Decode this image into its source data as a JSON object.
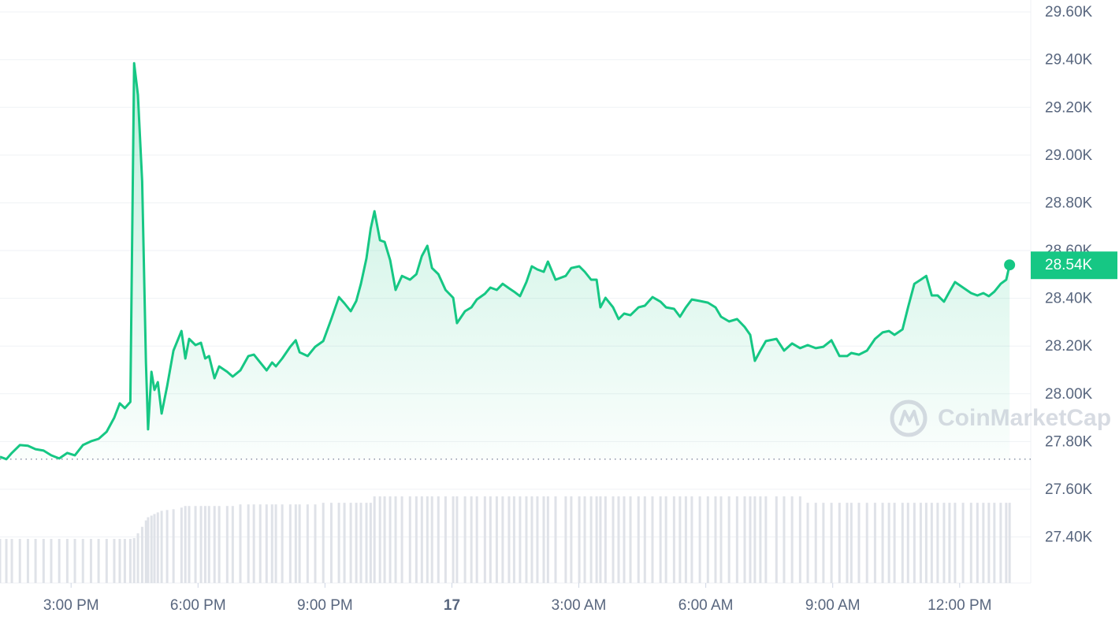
{
  "chart_data": {
    "type": "line",
    "x": [
      -1.68,
      -1.53,
      -1.4,
      -1.21,
      -1.02,
      -0.84,
      -0.65,
      -0.47,
      -0.28,
      -0.09,
      0.09,
      0.28,
      0.47,
      0.65,
      0.84,
      1.02,
      1.15,
      1.27,
      1.4,
      1.49,
      1.58,
      1.68,
      1.77,
      1.82,
      1.9,
      1.97,
      2.05,
      2.14,
      2.27,
      2.42,
      2.61,
      2.7,
      2.79,
      2.94,
      3.07,
      3.17,
      3.26,
      3.39,
      3.5,
      3.69,
      3.82,
      4.0,
      4.19,
      4.32,
      4.47,
      4.62,
      4.75,
      4.84,
      4.99,
      5.18,
      5.31,
      5.4,
      5.59,
      5.77,
      5.96,
      6.15,
      6.33,
      6.46,
      6.61,
      6.74,
      6.85,
      6.98,
      7.08,
      7.17,
      7.3,
      7.41,
      7.54,
      7.67,
      7.82,
      8.01,
      8.16,
      8.29,
      8.42,
      8.53,
      8.68,
      8.85,
      9.03,
      9.12,
      9.31,
      9.46,
      9.59,
      9.78,
      9.91,
      10.06,
      10.2,
      10.35,
      10.47,
      10.61,
      10.76,
      10.89,
      11.02,
      11.17,
      11.27,
      11.45,
      11.69,
      11.82,
      12.01,
      12.14,
      12.29,
      12.42,
      12.51,
      12.63,
      12.81,
      12.94,
      13.07,
      13.22,
      13.41,
      13.56,
      13.74,
      13.93,
      14.06,
      14.25,
      14.39,
      14.53,
      14.67,
      14.86,
      15.05,
      15.23,
      15.36,
      15.55,
      15.74,
      15.92,
      16.05,
      16.16,
      16.29,
      16.42,
      16.67,
      16.85,
      17.04,
      17.23,
      17.41,
      17.6,
      17.78,
      17.97,
      18.16,
      18.34,
      18.44,
      18.62,
      18.81,
      19.0,
      19.18,
      19.33,
      19.46,
      19.65,
      19.78,
      19.93,
      20.08,
      20.21,
      20.34,
      20.48,
      20.63,
      20.76,
      20.89,
      21.08,
      21.27,
      21.42,
      21.56,
      21.69,
      21.82,
      21.97,
      22.1,
      22.18
    ],
    "series": [
      {
        "color": "#16c784",
        "values": [
          27736,
          27726,
          27752,
          27785,
          27782,
          27768,
          27762,
          27742,
          27729,
          27752,
          27742,
          27785,
          27801,
          27811,
          27841,
          27900,
          27960,
          27940,
          27966,
          29385,
          29253,
          28890,
          28131,
          27851,
          28092,
          28016,
          28049,
          27917,
          28032,
          28181,
          28263,
          28148,
          28230,
          28204,
          28214,
          28148,
          28158,
          28065,
          28115,
          28092,
          28072,
          28098,
          28158,
          28164,
          28131,
          28098,
          28131,
          28115,
          28148,
          28197,
          28224,
          28174,
          28158,
          28197,
          28221,
          28313,
          28405,
          28379,
          28346,
          28389,
          28461,
          28567,
          28692,
          28765,
          28643,
          28636,
          28560,
          28435,
          28494,
          28478,
          28501,
          28577,
          28620,
          28527,
          28501,
          28435,
          28402,
          28296,
          28346,
          28362,
          28395,
          28419,
          28445,
          28435,
          28461,
          28442,
          28428,
          28409,
          28468,
          28534,
          28521,
          28511,
          28554,
          28478,
          28494,
          28527,
          28534,
          28511,
          28478,
          28478,
          28362,
          28402,
          28362,
          28313,
          28336,
          28329,
          28362,
          28369,
          28405,
          28386,
          28362,
          28356,
          28323,
          28362,
          28395,
          28389,
          28382,
          28362,
          28323,
          28303,
          28313,
          28280,
          28247,
          28138,
          28181,
          28221,
          28230,
          28181,
          28211,
          28191,
          28204,
          28191,
          28197,
          28224,
          28158,
          28158,
          28171,
          28164,
          28181,
          28230,
          28257,
          28263,
          28247,
          28270,
          28362,
          28461,
          28478,
          28494,
          28412,
          28412,
          28386,
          28428,
          28468,
          28445,
          28422,
          28412,
          28422,
          28409,
          28428,
          28461,
          28478,
          28540
        ]
      }
    ],
    "volume": {
      "color": "#dfe2e8",
      "values": [
        55,
        55,
        55,
        55,
        55,
        55,
        55,
        55,
        55,
        55,
        55,
        55,
        55,
        55,
        55,
        55,
        55,
        55,
        55,
        56,
        62,
        70,
        78,
        82,
        84,
        86,
        88,
        90,
        91,
        92,
        94,
        96,
        96,
        96,
        96,
        96,
        96,
        96,
        96,
        96,
        96,
        98,
        98,
        98,
        98,
        98,
        98,
        98,
        98,
        98,
        98,
        98,
        98,
        98,
        100,
        100,
        100,
        100,
        100,
        100,
        100,
        100,
        100,
        108,
        108,
        108,
        108,
        108,
        108,
        108,
        108,
        108,
        108,
        108,
        108,
        108,
        108,
        108,
        108,
        108,
        108,
        108,
        108,
        108,
        108,
        108,
        108,
        108,
        108,
        108,
        108,
        108,
        108,
        108,
        108,
        108,
        108,
        108,
        108,
        108,
        108,
        108,
        108,
        108,
        108,
        108,
        108,
        108,
        108,
        108,
        108,
        108,
        108,
        108,
        108,
        108,
        108,
        108,
        108,
        108,
        108,
        108,
        108,
        108,
        108,
        108,
        108,
        108,
        108,
        108,
        100,
        100,
        100,
        100,
        100,
        100,
        100,
        100,
        100,
        100,
        100,
        100,
        100,
        100,
        100,
        100,
        100,
        100,
        100,
        100,
        100,
        100,
        100,
        100,
        100,
        100,
        100,
        100,
        100,
        100,
        100,
        100
      ]
    },
    "reference_value": 27726,
    "current_label": {
      "value": 28540,
      "label": "28.54K"
    },
    "xlim": [
      -1.68,
      22.68
    ],
    "ylim": [
      27207,
      29650
    ],
    "xticks": [
      {
        "value": 0,
        "label": "3:00 PM"
      },
      {
        "value": 3,
        "label": "6:00 PM"
      },
      {
        "value": 6,
        "label": "9:00 PM"
      },
      {
        "value": 9,
        "label": "17"
      },
      {
        "value": 12,
        "label": "3:00 AM"
      },
      {
        "value": 15,
        "label": "6:00 AM"
      },
      {
        "value": 18,
        "label": "9:00 AM"
      },
      {
        "value": 21,
        "label": "12:00 PM"
      }
    ],
    "yticks": [
      {
        "value": 27400,
        "label": "27.40K"
      },
      {
        "value": 27600,
        "label": "27.60K"
      },
      {
        "value": 27800,
        "label": "27.80K"
      },
      {
        "value": 28000,
        "label": "28.00K"
      },
      {
        "value": 28200,
        "label": "28.20K"
      },
      {
        "value": 28400,
        "label": "28.40K"
      },
      {
        "value": 28600,
        "label": "28.60K"
      },
      {
        "value": 28800,
        "label": "28.80K"
      },
      {
        "value": 29000,
        "label": "29.00K"
      },
      {
        "value": 29200,
        "label": "29.20K"
      },
      {
        "value": 29400,
        "label": "29.40K"
      },
      {
        "value": 29600,
        "label": "29.60K"
      }
    ],
    "grid": true,
    "watermark": "CoinMarketCap"
  }
}
